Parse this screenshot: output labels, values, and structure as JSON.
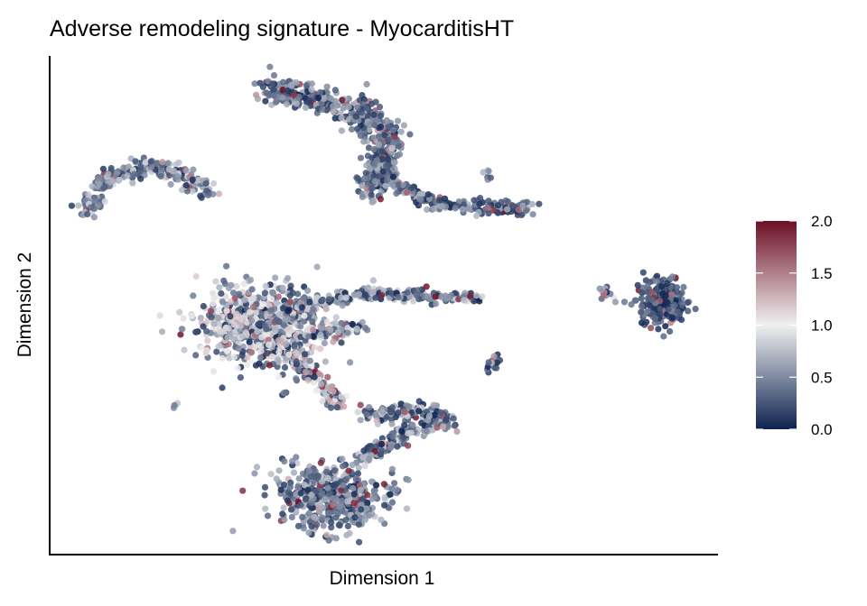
{
  "chart_data": {
    "type": "scatter",
    "title": "Adverse remodeling signature - MyocarditisHT",
    "xlabel": "Dimension 1",
    "ylabel": "Dimension 2",
    "xlim": [
      0,
      100
    ],
    "ylim": [
      0,
      100
    ],
    "grid": false,
    "legend": "right",
    "color_scale": {
      "min": 0.0,
      "max": 2.0,
      "ticks": [
        "0.0",
        "0.5",
        "1.0",
        "1.5",
        "2.0"
      ],
      "tick_values": [
        0,
        0.5,
        1.0,
        1.5,
        2.0
      ],
      "colors": [
        "#0d2350",
        "#f0f0f0",
        "#6e0f26"
      ]
    },
    "clusters": [
      {
        "kind": "path",
        "points": [
          [
            5.4,
            68.7
          ],
          [
            8.8,
            75.9
          ],
          [
            14.9,
            77.8
          ],
          [
            19.6,
            76.5
          ],
          [
            23.6,
            72.3
          ]
        ],
        "spread": 1.4,
        "count": 260,
        "mean": 0.55
      },
      {
        "kind": "path",
        "points": [
          [
            32.5,
            93.5
          ],
          [
            39.9,
            91.3
          ],
          [
            46.6,
            88.6
          ],
          [
            50.7,
            84.1
          ],
          [
            49.3,
            76.9
          ],
          [
            48,
            71.5
          ]
        ],
        "spread": 2.0,
        "count": 520,
        "mean": 0.45
      },
      {
        "kind": "path",
        "points": [
          [
            50,
            76
          ],
          [
            57.4,
            70.5
          ],
          [
            64.2,
            69.6
          ],
          [
            73,
            69.6
          ]
        ],
        "spread": 1.1,
        "count": 200,
        "mean": 0.45
      },
      {
        "kind": "blob",
        "center": [
          31.5,
          46
        ],
        "r": [
          8.5,
          7.5
        ],
        "count": 750,
        "mean": 0.75
      },
      {
        "kind": "path",
        "points": [
          [
            36,
            49.5
          ],
          [
            46.6,
            52.4
          ],
          [
            58,
            51.8
          ],
          [
            64.2,
            51.5
          ]
        ],
        "spread": 0.9,
        "count": 220,
        "mean": 0.55
      },
      {
        "kind": "path",
        "points": [
          [
            38,
            44
          ],
          [
            44,
            45
          ],
          [
            47,
            46
          ]
        ],
        "spread": 0.9,
        "count": 60,
        "mean": 0.6
      },
      {
        "kind": "path",
        "points": [
          [
            36,
            42
          ],
          [
            38.5,
            37.1
          ],
          [
            43.9,
            29.8
          ]
        ],
        "spread": 1.3,
        "count": 130,
        "mean": 0.9
      },
      {
        "kind": "blob",
        "center": [
          91.5,
          50.5
        ],
        "r": [
          3.2,
          4.2
        ],
        "count": 220,
        "mean": 0.3
      },
      {
        "kind": "path",
        "points": [
          [
            82.4,
            53.3
          ],
          [
            85,
            50.5
          ]
        ],
        "spread": 0.6,
        "count": 12,
        "mean": 0.9
      },
      {
        "kind": "blob",
        "center": [
          66.5,
          38.5
        ],
        "r": [
          1.2,
          1.4
        ],
        "count": 25,
        "mean": 0.35
      },
      {
        "kind": "path",
        "points": [
          [
            46.6,
            28
          ],
          [
            54.7,
            28.9
          ],
          [
            60.1,
            27.1
          ],
          [
            53.4,
            24.4
          ],
          [
            46.6,
            19
          ]
        ],
        "spread": 1.2,
        "count": 300,
        "mean": 0.55
      },
      {
        "kind": "blob",
        "center": [
          42.6,
          11.8
        ],
        "r": [
          7.8,
          5.8
        ],
        "count": 520,
        "mean": 0.5
      },
      {
        "kind": "path",
        "points": [
          [
            18.3,
            29.6
          ],
          [
            19.7,
            31
          ]
        ],
        "spread": 0.3,
        "count": 5,
        "mean": 1.1
      },
      {
        "kind": "path",
        "points": [
          [
            34.8,
            31.8
          ],
          [
            35.3,
            32.6
          ]
        ],
        "spread": 0.3,
        "count": 4,
        "mean": 0.4
      },
      {
        "kind": "path",
        "points": [
          [
            65.5,
            77
          ],
          [
            65.8,
            75
          ]
        ],
        "spread": 0.4,
        "count": 6,
        "mean": 0.6
      }
    ]
  }
}
